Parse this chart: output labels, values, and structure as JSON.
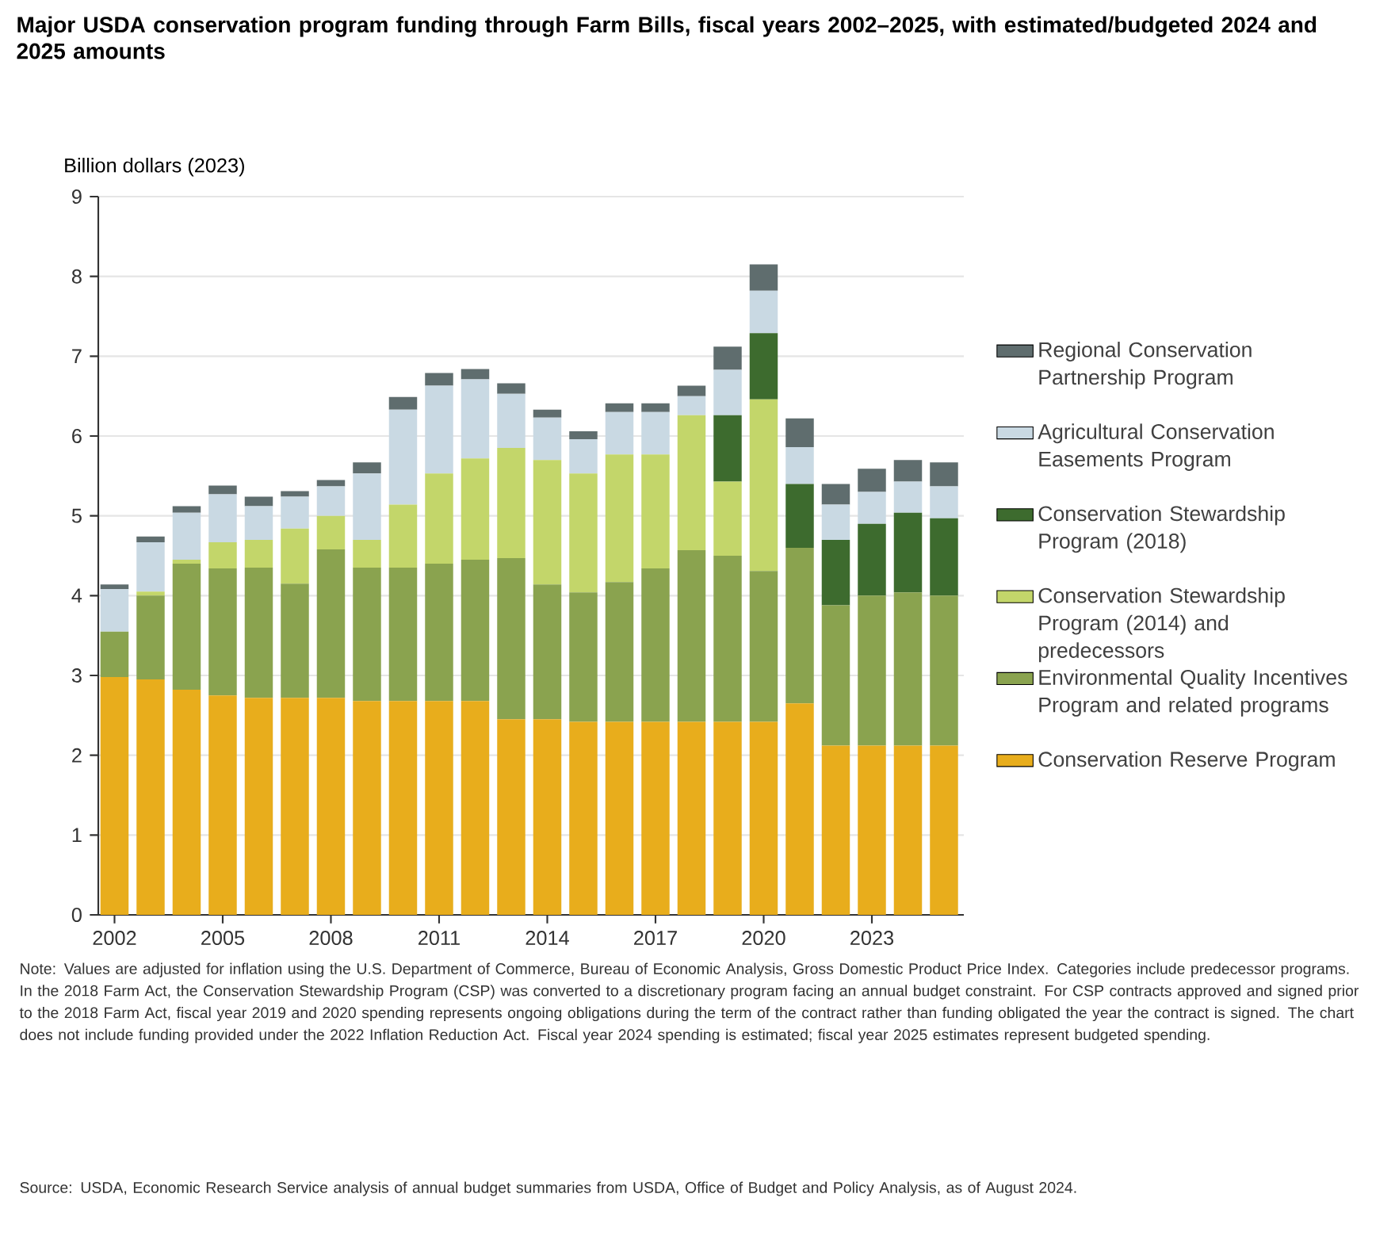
{
  "chart_data": {
    "type": "bar",
    "stacked": true,
    "title": "Major USDA conservation program funding through Farm Bills, fiscal years 2002–2025, with estimated/budgeted 2024 and 2025 amounts",
    "ylabel": "Billion dollars (2023)",
    "x": [
      2002,
      2003,
      2004,
      2005,
      2006,
      2007,
      2008,
      2009,
      2010,
      2011,
      2012,
      2013,
      2014,
      2015,
      2016,
      2017,
      2018,
      2019,
      2020,
      2021,
      2022,
      2023,
      2024,
      2025
    ],
    "xlim": [
      2001.55,
      2025.55
    ],
    "xticks": [
      2002,
      2005,
      2008,
      2011,
      2014,
      2017,
      2020,
      2023
    ],
    "ylim": [
      0,
      9
    ],
    "yticks": [
      0,
      1,
      2,
      3,
      4,
      5,
      6,
      7,
      8,
      9
    ],
    "grid": "y",
    "legend": "right",
    "series": [
      {
        "name": "Conservation Reserve Program",
        "color": "#e8ad1c",
        "values": [
          2.98,
          2.95,
          2.82,
          2.75,
          2.72,
          2.72,
          2.72,
          2.68,
          2.68,
          2.68,
          2.68,
          2.45,
          2.45,
          2.42,
          2.42,
          2.42,
          2.42,
          2.42,
          2.42,
          2.65,
          2.12,
          2.12,
          2.12,
          2.12
        ]
      },
      {
        "name": "Environmental Quality Incentives Program and related programs",
        "color": "#8aa34f",
        "values": [
          0.57,
          1.05,
          1.58,
          1.59,
          1.63,
          1.43,
          1.86,
          1.67,
          1.67,
          1.72,
          1.77,
          2.02,
          1.69,
          1.62,
          1.75,
          1.92,
          2.15,
          2.08,
          1.89,
          1.95,
          1.76,
          1.88,
          1.92,
          1.88
        ]
      },
      {
        "name": "Conservation Stewardship Program (2014) and predecessors",
        "color": "#c3d66a",
        "values": [
          0,
          0.05,
          0.05,
          0.33,
          0.35,
          0.69,
          0.42,
          0.35,
          0.79,
          1.13,
          1.27,
          1.38,
          1.56,
          1.49,
          1.6,
          1.43,
          1.69,
          0.93,
          2.15,
          0,
          0,
          0,
          0,
          0
        ]
      },
      {
        "name": "Conservation Stewardship Program (2018)",
        "color": "#3d6b2e",
        "values": [
          0,
          0,
          0,
          0,
          0,
          0,
          0,
          0,
          0,
          0,
          0,
          0,
          0,
          0,
          0,
          0,
          0,
          0.83,
          0.83,
          0.8,
          0.82,
          0.9,
          1.0,
          0.97
        ]
      },
      {
        "name": "Agricultural Conservation Easements Program",
        "color": "#c9d9e3",
        "values": [
          0.53,
          0.62,
          0.59,
          0.6,
          0.42,
          0.4,
          0.37,
          0.83,
          1.19,
          1.1,
          0.99,
          0.68,
          0.53,
          0.43,
          0.53,
          0.53,
          0.24,
          0.57,
          0.53,
          0.46,
          0.44,
          0.4,
          0.39,
          0.4
        ]
      },
      {
        "name": "Regional Conservation Partnership Program",
        "color": "#5f6d6e",
        "values": [
          0.06,
          0.07,
          0.08,
          0.11,
          0.12,
          0.07,
          0.08,
          0.14,
          0.16,
          0.16,
          0.13,
          0.13,
          0.1,
          0.1,
          0.11,
          0.11,
          0.13,
          0.29,
          0.33,
          0.36,
          0.26,
          0.29,
          0.27,
          0.3
        ]
      }
    ],
    "annotations": [
      "Note: Values are adjusted for inflation using the U.S. Department of Commerce, Bureau of Economic Analysis, Gross Domestic Product Price Index. Categories include predecessor programs. In the 2018 Farm Act, the Conservation Stewardship Program (CSP) was converted to a discretionary program facing an annual budget constraint. For CSP contracts approved and signed prior to the 2018 Farm Act, fiscal year 2019 and 2020 spending represents ongoing obligations during the term of the contract rather than funding obligated the year the contract is signed. The chart does not include funding provided under the 2022 Inflation Reduction Act. Fiscal year 2024 spending is estimated; fiscal year 2025 estimates represent budgeted spending.",
      "Source: USDA, Economic Research Service analysis of annual budget summaries from USDA, Office of Budget and Policy Analysis, as of August 2024."
    ]
  }
}
